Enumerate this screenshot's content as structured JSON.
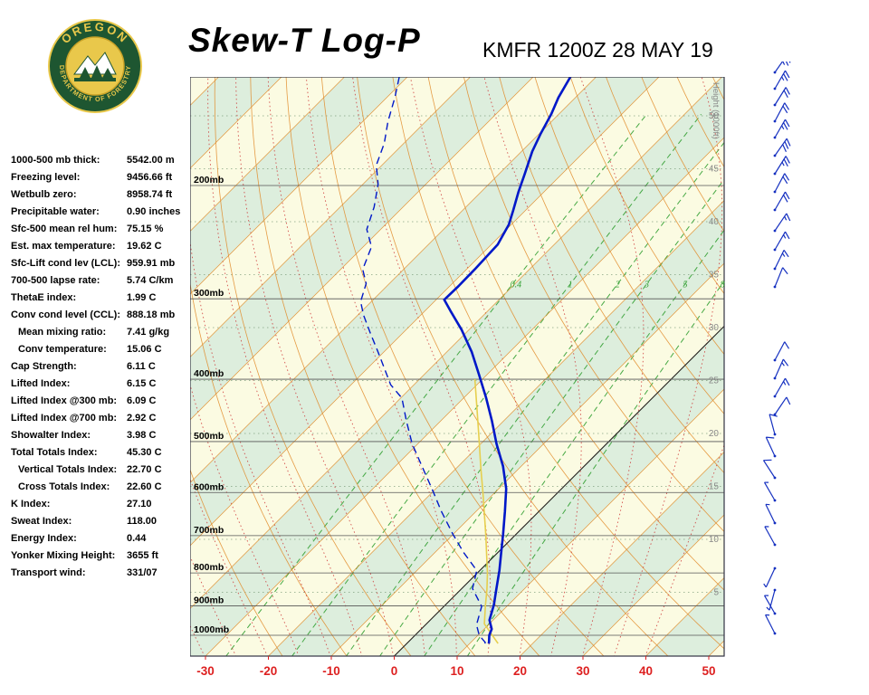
{
  "header": {
    "title": "Skew-T Log-P",
    "station_line": "KMFR 1200Z 28 MAY 19",
    "logo": {
      "arc_top": "OREGON",
      "arc_bottom": "DEPARTMENT OF FORESTRY"
    }
  },
  "indices": [
    {
      "label": "1000-500 mb thick:",
      "value": "5542.00 m",
      "indent": false
    },
    {
      "label": "Freezing level:",
      "value": "9456.66 ft",
      "indent": false
    },
    {
      "label": "Wetbulb zero:",
      "value": "8958.74 ft",
      "indent": false
    },
    {
      "label": "Precipitable water:",
      "value": "0.90 inches",
      "indent": false
    },
    {
      "label": "Sfc-500 mean rel hum:",
      "value": "75.15 %",
      "indent": false
    },
    {
      "label": "Est. max temperature:",
      "value": "19.62 C",
      "indent": false
    },
    {
      "label": "Sfc-Lift cond lev (LCL):",
      "value": "959.91 mb",
      "indent": false
    },
    {
      "label": "700-500 lapse rate:",
      "value": "5.74 C/km",
      "indent": false
    },
    {
      "label": "ThetaE index:",
      "value": "1.99 C",
      "indent": false
    },
    {
      "label": "Conv cond level (CCL):",
      "value": "888.18 mb",
      "indent": false
    },
    {
      "label": "Mean mixing ratio:",
      "value": "7.41 g/kg",
      "indent": true
    },
    {
      "label": "Conv temperature:",
      "value": "15.06 C",
      "indent": true
    },
    {
      "label": "Cap Strength:",
      "value": "6.11 C",
      "indent": false
    },
    {
      "label": "Lifted Index:",
      "value": "6.15 C",
      "indent": false
    },
    {
      "label": "Lifted Index @300 mb:",
      "value": "6.09 C",
      "indent": false
    },
    {
      "label": "Lifted Index @700 mb:",
      "value": "2.92 C",
      "indent": false
    },
    {
      "label": "Showalter Index:",
      "value": "3.98 C",
      "indent": false
    },
    {
      "label": "Total Totals Index:",
      "value": "45.30 C",
      "indent": false
    },
    {
      "label": "Vertical Totals Index:",
      "value": "22.70 C",
      "indent": true
    },
    {
      "label": "Cross Totals Index:",
      "value": "22.60 C",
      "indent": true
    },
    {
      "label": "K Index:",
      "value": "27.10",
      "indent": false
    },
    {
      "label": "Sweat Index:",
      "value": "118.00",
      "indent": false
    },
    {
      "label": "Energy Index:",
      "value": "0.44",
      "indent": false
    },
    {
      "label": "Yonker Mixing Height:",
      "value": "3655 ft",
      "indent": false
    },
    {
      "label": "Transport wind:",
      "value": "331/07",
      "indent": false
    }
  ],
  "chart_data": {
    "type": "skewt-log-p",
    "height_axis_title": "Height (1000ft)",
    "pressure_levels": [
      {
        "p": 200,
        "label": "200mb"
      },
      {
        "p": 300,
        "label": "300mb"
      },
      {
        "p": 400,
        "label": "400mb"
      },
      {
        "p": 500,
        "label": "500mb"
      },
      {
        "p": 600,
        "label": "600mb"
      },
      {
        "p": 700,
        "label": "700mb"
      },
      {
        "p": 800,
        "label": "800mb"
      },
      {
        "p": 900,
        "label": "900mb"
      },
      {
        "p": 1000,
        "label": "1000mb"
      }
    ],
    "height_levels": [
      {
        "h": 50,
        "label": "50"
      },
      {
        "h": 45,
        "label": "45"
      },
      {
        "h": 40,
        "label": "40"
      },
      {
        "h": 35,
        "label": "35"
      },
      {
        "h": 30,
        "label": "30"
      },
      {
        "h": 25,
        "label": "25"
      },
      {
        "h": 20,
        "label": "20"
      },
      {
        "h": 15,
        "label": "15"
      },
      {
        "h": 10,
        "label": "10"
      },
      {
        "h": 5,
        "label": "5"
      }
    ],
    "temp_ticks": [
      {
        "t": -30,
        "label": "-30"
      },
      {
        "t": -20,
        "label": "-20"
      },
      {
        "t": -10,
        "label": "-10"
      },
      {
        "t": 0,
        "label": "0"
      },
      {
        "t": 10,
        "label": "10"
      },
      {
        "t": 20,
        "label": "20"
      },
      {
        "t": 30,
        "label": "30"
      },
      {
        "t": 40,
        "label": "40"
      },
      {
        "t": 50,
        "label": "50"
      }
    ],
    "mixing_ratio_lines": [
      {
        "r": 0.4,
        "label": "0.4"
      },
      {
        "r": 1,
        "label": "1"
      },
      {
        "r": 2,
        "label": "2"
      },
      {
        "r": 3,
        "label": "3"
      },
      {
        "r": 5,
        "label": "5"
      },
      {
        "r": 8,
        "label": "8"
      }
    ],
    "grid": {
      "isotherm_min": -130,
      "isotherm_max": 60,
      "isotherm_step": 10,
      "highlight_isotherm": 0,
      "dry_adiabat_min_K": 250,
      "dry_adiabat_max_K": 420,
      "dry_adiabat_step_K": 10,
      "moist_adiabat_min_C": -60,
      "moist_adiabat_max_C": 40,
      "moist_adiabat_step_C": 5,
      "mixing_label_pressure": 290
    },
    "temperature_profile": [
      [
        1030,
        13.0
      ],
      [
        1026,
        12.9
      ],
      [
        1000,
        11.8
      ],
      [
        978,
        11.2
      ],
      [
        947,
        9.4
      ],
      [
        897,
        7.7
      ],
      [
        846,
        5.5
      ],
      [
        793,
        3.1
      ],
      [
        743,
        0.5
      ],
      [
        696,
        -2.1
      ],
      [
        642,
        -5.4
      ],
      [
        592,
        -8.8
      ],
      [
        546,
        -12.9
      ],
      [
        504,
        -17.5
      ],
      [
        464,
        -21.9
      ],
      [
        428,
        -26.4
      ],
      [
        394,
        -31.2
      ],
      [
        363,
        -36.0
      ],
      [
        335,
        -41.2
      ],
      [
        313,
        -46.0
      ],
      [
        301,
        -48.7
      ],
      [
        287,
        -48.6
      ],
      [
        270,
        -48.7
      ],
      [
        247,
        -49.0
      ],
      [
        230,
        -50.4
      ],
      [
        219,
        -51.9
      ],
      [
        205,
        -54.0
      ],
      [
        192,
        -55.9
      ],
      [
        177,
        -58.3
      ],
      [
        166,
        -59.8
      ],
      [
        155,
        -61.2
      ],
      [
        146,
        -62.7
      ],
      [
        134,
        -64.3
      ]
    ],
    "dewpoint_profile": [
      [
        1030,
        12.4
      ],
      [
        1026,
        12.3
      ],
      [
        1000,
        10.2
      ],
      [
        963,
        8.1
      ],
      [
        902,
        6.0
      ],
      [
        846,
        1.7
      ],
      [
        793,
        -0.5
      ],
      [
        743,
        -5.5
      ],
      [
        696,
        -10.1
      ],
      [
        642,
        -15.5
      ],
      [
        592,
        -20.6
      ],
      [
        546,
        -25.8
      ],
      [
        504,
        -30.9
      ],
      [
        464,
        -35.5
      ],
      [
        428,
        -39.8
      ],
      [
        408,
        -43.7
      ],
      [
        388,
        -46.8
      ],
      [
        363,
        -50.9
      ],
      [
        340,
        -55.0
      ],
      [
        318,
        -59.1
      ],
      [
        303,
        -61.7
      ],
      [
        284,
        -63.7
      ],
      [
        270,
        -66.5
      ],
      [
        249,
        -68.7
      ],
      [
        234,
        -72.2
      ],
      [
        216,
        -74.6
      ],
      [
        199,
        -77.6
      ],
      [
        186,
        -80.9
      ],
      [
        172,
        -83.1
      ],
      [
        159,
        -86.0
      ],
      [
        146,
        -88.7
      ],
      [
        134,
        -91.7
      ]
    ],
    "parcel_path": [
      [
        1030,
        14.5
      ],
      [
        960,
        9.2
      ],
      [
        900,
        6.5
      ],
      [
        850,
        4.2
      ],
      [
        800,
        1.6
      ],
      [
        750,
        -1.4
      ],
      [
        700,
        -4.6
      ],
      [
        650,
        -8.1
      ],
      [
        600,
        -11.9
      ],
      [
        550,
        -16.1
      ],
      [
        500,
        -20.6
      ],
      [
        450,
        -25.6
      ],
      [
        400,
        -31.2
      ]
    ],
    "wind_barbs": [
      [
        80,
        35,
        25
      ],
      [
        98,
        30,
        25
      ],
      [
        116,
        32,
        20
      ],
      [
        134,
        28,
        20
      ],
      [
        152,
        30,
        25
      ],
      [
        172,
        35,
        30
      ],
      [
        192,
        32,
        25
      ],
      [
        212,
        28,
        20
      ],
      [
        232,
        30,
        20
      ],
      [
        255,
        34,
        15
      ],
      [
        276,
        30,
        15
      ],
      [
        297,
        26,
        15
      ],
      [
        317,
        22,
        10
      ],
      [
        398,
        28,
        10
      ],
      [
        418,
        24,
        15
      ],
      [
        438,
        30,
        15
      ],
      [
        458,
        34,
        10
      ],
      [
        480,
        345,
        10
      ],
      [
        504,
        335,
        10
      ],
      [
        528,
        327,
        10
      ],
      [
        553,
        330,
        7
      ],
      [
        578,
        334,
        7
      ],
      [
        602,
        331,
        5
      ],
      [
        628,
        205,
        5
      ],
      [
        652,
        195,
        5
      ],
      [
        678,
        330,
        7
      ],
      [
        700,
        333,
        5
      ]
    ],
    "colors": {
      "band_cream": "#fbfbe2",
      "band_green": "#ddeedd",
      "isotherm": "#e08a28",
      "dry_adiabat": "#e08a28",
      "moist_adiabat": "#cc3434",
      "mixing_ratio": "#33a033",
      "highlight_isotherm": "#222222",
      "pressure_line": "#555555",
      "pressure_text": "#000000",
      "height_line": "#6a8f6a",
      "height_text": "#888888",
      "temperature": "#0018c8",
      "dewpoint": "#0018c8",
      "parcel": "#e6cf4e",
      "axis_tick": "#dd2020",
      "barb": "#1530c0",
      "border": "#333344",
      "logo_green": "#1e5631",
      "logo_gold": "#e9c84b"
    }
  }
}
